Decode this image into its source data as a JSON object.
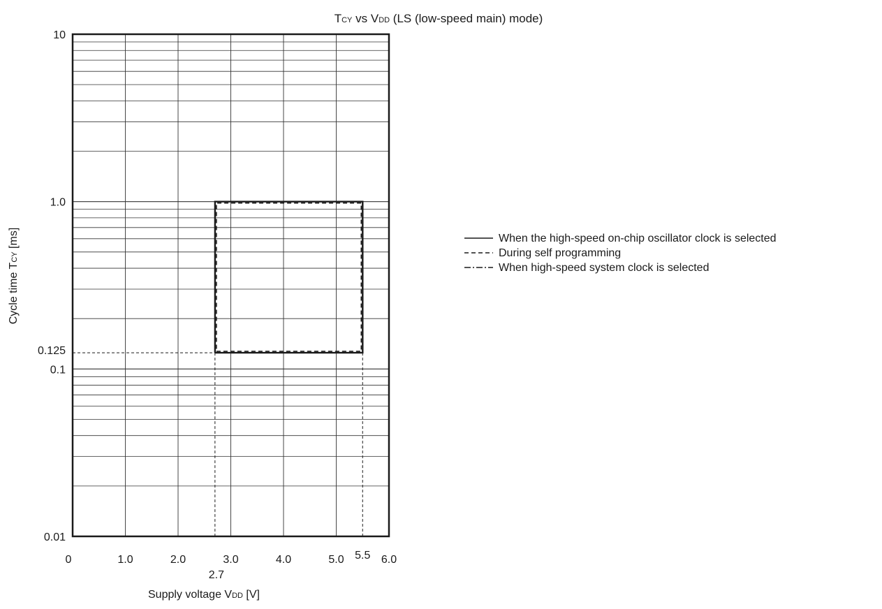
{
  "chart_data": {
    "type": "line",
    "title": {
      "pre": "T",
      "sub1": "CY",
      "mid": " vs V",
      "sub2": "DD",
      "post": " (LS (low-speed main) mode)"
    },
    "xlabel": {
      "pre": "Supply voltage V",
      "sub": "DD",
      "post": " [V]"
    },
    "ylabel": {
      "pre": "Cycle time T",
      "sub": "CY",
      "post": " [ms]"
    },
    "x_scale": "linear",
    "y_scale": "log",
    "xlim": [
      0,
      6.0
    ],
    "ylim": [
      0.01,
      10
    ],
    "x_ticks": [
      {
        "v": 0,
        "label": "0"
      },
      {
        "v": 1,
        "label": "1.0"
      },
      {
        "v": 2,
        "label": "2.0"
      },
      {
        "v": 3,
        "label": "3.0"
      },
      {
        "v": 4,
        "label": "4.0"
      },
      {
        "v": 5,
        "label": "5.0"
      },
      {
        "v": 6,
        "label": "6.0"
      }
    ],
    "x_markers": [
      {
        "v": 2.7,
        "label": "2.7"
      },
      {
        "v": 5.5,
        "label": "5.5"
      }
    ],
    "y_ticks": [
      {
        "v": 0.01,
        "label": "0.01"
      },
      {
        "v": 0.1,
        "label": "0.1"
      },
      {
        "v": 1,
        "label": "1.0"
      },
      {
        "v": 10,
        "label": "10"
      }
    ],
    "y_markers": [
      {
        "v": 0.125,
        "label": "0.125"
      }
    ],
    "grid": true,
    "legend_position": "right",
    "series": [
      {
        "name": "When the high-speed on-chip oscillator clock is selected",
        "style": "solid",
        "points": [
          [
            2.7,
            0.125
          ],
          [
            5.5,
            0.125
          ],
          [
            5.5,
            1.0
          ],
          [
            2.7,
            1.0
          ],
          [
            2.7,
            0.125
          ]
        ]
      },
      {
        "name": "During self programming",
        "style": "dashed",
        "points": [
          [
            2.7,
            0.125
          ],
          [
            5.5,
            0.125
          ],
          [
            5.5,
            1.0
          ],
          [
            2.7,
            1.0
          ],
          [
            2.7,
            0.125
          ]
        ]
      },
      {
        "name": "When high-speed system clock is selected",
        "style": "dashdot",
        "points": [
          [
            2.7,
            0.125
          ],
          [
            5.5,
            0.125
          ],
          [
            5.5,
            1.0
          ],
          [
            2.7,
            1.0
          ],
          [
            2.7,
            0.125
          ]
        ]
      }
    ],
    "colors": {
      "axis": "#1a1a1a",
      "grid": "#333333",
      "line": "#1a1a1a"
    }
  }
}
